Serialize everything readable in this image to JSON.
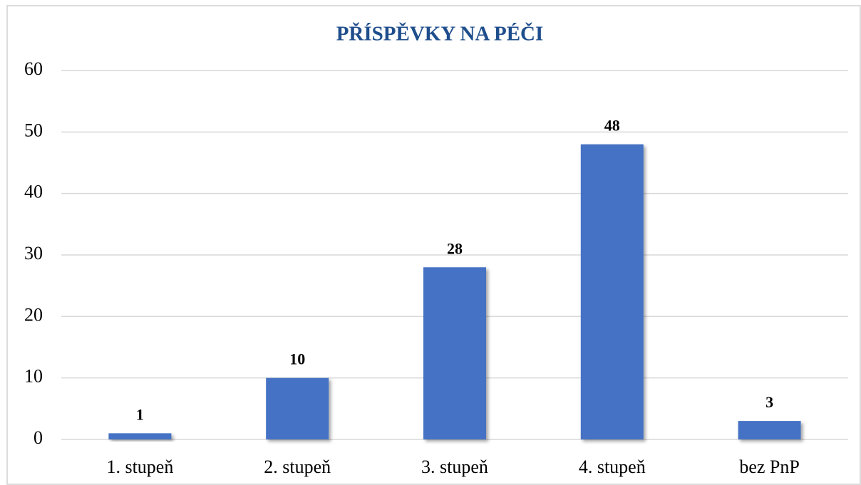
{
  "chart_data": {
    "type": "bar",
    "title": "PŘÍSPĚVKY NA PÉČI",
    "categories": [
      "1. stupeň",
      "2. stupeň",
      "3. stupeň",
      "4. stupeň",
      "bez PnP"
    ],
    "values": [
      1,
      10,
      28,
      48,
      3
    ],
    "color": "#4472c4",
    "ylim": [
      0,
      60
    ],
    "yticks": [
      0,
      10,
      20,
      30,
      40,
      50,
      60
    ],
    "grid": true
  }
}
